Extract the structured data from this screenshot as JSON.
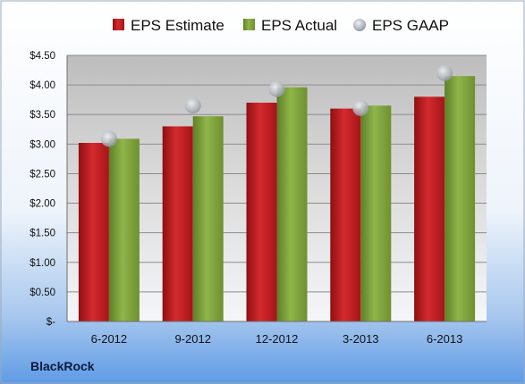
{
  "colors": {
    "estimate": "#c0181e",
    "actual": "#7ea339",
    "gaap": "#b7bcc3",
    "background_top": "#ffffff",
    "background_bottom": "#5e9be6"
  },
  "company_label": "BlackRock",
  "chart_data": {
    "type": "bar",
    "categories": [
      "6-2012",
      "9-2012",
      "12-2012",
      "3-2013",
      "6-2013"
    ],
    "series": [
      {
        "name": "EPS Estimate",
        "values": [
          3.02,
          3.3,
          3.7,
          3.6,
          3.8
        ]
      },
      {
        "name": "EPS Actual",
        "values": [
          3.09,
          3.47,
          3.96,
          3.65,
          4.15
        ]
      },
      {
        "name": "EPS GAAP",
        "values": [
          3.09,
          3.65,
          3.93,
          3.61,
          4.2
        ],
        "style": "marker"
      }
    ],
    "y_ticks": [
      "$-",
      "$0.50",
      "$1.00",
      "$1.50",
      "$2.00",
      "$2.50",
      "$3.00",
      "$3.50",
      "$4.00",
      "$4.50"
    ],
    "ylim": [
      0,
      4.5
    ],
    "grid": true,
    "legend_position": "top"
  }
}
